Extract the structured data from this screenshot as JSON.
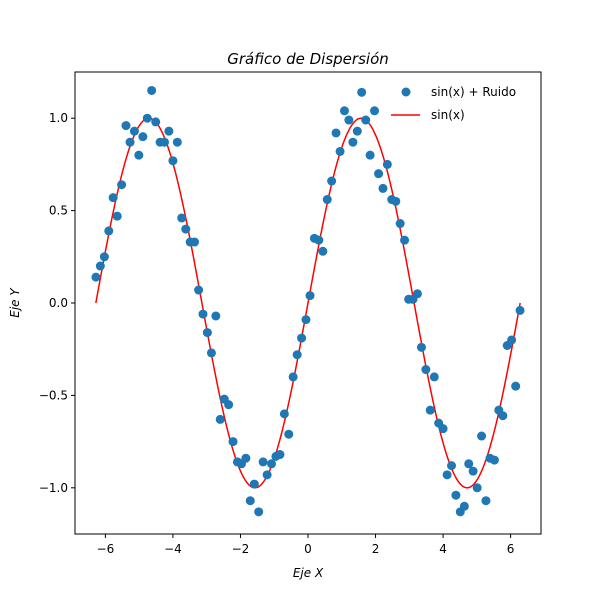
{
  "chart_data": {
    "type": "scatter",
    "title": "Gráfico de Dispersión",
    "xlabel": "Eje X",
    "ylabel": "Eje Y",
    "xlim": [
      -6.9,
      6.9
    ],
    "ylim": [
      -1.25,
      1.25
    ],
    "xticks": [
      -6,
      -4,
      -2,
      0,
      2,
      4,
      6
    ],
    "yticks": [
      -1.0,
      -0.5,
      0.0,
      0.5,
      1.0
    ],
    "xtick_labels": [
      "−6",
      "−4",
      "−2",
      "0",
      "2",
      "4",
      "6"
    ],
    "ytick_labels": [
      "−1.0",
      "−0.5",
      "0.0",
      "0.5",
      "1.0"
    ],
    "grid": false,
    "legend_position": "top-right",
    "series": [
      {
        "name": "sin(x) + Ruido",
        "kind": "scatter",
        "color": "#1f77b4",
        "x": [
          -6.28,
          -6.15,
          -6.03,
          -5.9,
          -5.77,
          -5.65,
          -5.52,
          -5.39,
          -5.27,
          -5.14,
          -5.01,
          -4.89,
          -4.76,
          -4.63,
          -4.51,
          -4.38,
          -4.25,
          -4.12,
          -4.0,
          -3.87,
          -3.74,
          -3.62,
          -3.49,
          -3.36,
          -3.24,
          -3.11,
          -2.98,
          -2.86,
          -2.73,
          -2.6,
          -2.48,
          -2.35,
          -2.22,
          -2.09,
          -1.97,
          -1.84,
          -1.71,
          -1.59,
          -1.46,
          -1.33,
          -1.21,
          -1.08,
          -0.95,
          -0.83,
          -0.7,
          -0.57,
          -0.44,
          -0.32,
          -0.19,
          -0.06,
          0.06,
          0.19,
          0.32,
          0.44,
          0.57,
          0.7,
          0.83,
          0.95,
          1.08,
          1.21,
          1.33,
          1.46,
          1.59,
          1.71,
          1.84,
          1.97,
          2.09,
          2.22,
          2.35,
          2.48,
          2.6,
          2.73,
          2.86,
          2.98,
          3.11,
          3.24,
          3.36,
          3.49,
          3.62,
          3.74,
          3.87,
          4.0,
          4.12,
          4.25,
          4.38,
          4.51,
          4.63,
          4.76,
          4.89,
          5.01,
          5.14,
          5.27,
          5.39,
          5.52,
          5.65,
          5.77,
          5.9,
          6.03,
          6.15,
          6.28
        ],
        "y": [
          0.14,
          0.2,
          0.25,
          0.39,
          0.57,
          0.47,
          0.64,
          0.96,
          0.87,
          0.93,
          0.8,
          0.9,
          1.0,
          1.15,
          0.98,
          0.87,
          0.87,
          0.93,
          0.77,
          0.87,
          0.46,
          0.4,
          0.33,
          0.33,
          0.07,
          -0.06,
          -0.16,
          -0.27,
          -0.07,
          -0.63,
          -0.52,
          -0.55,
          -0.75,
          -0.86,
          -0.87,
          -0.84,
          -1.07,
          -0.98,
          -1.13,
          -0.86,
          -0.93,
          -0.87,
          -0.83,
          -0.82,
          -0.6,
          -0.71,
          -0.4,
          -0.28,
          -0.19,
          -0.09,
          0.04,
          0.35,
          0.34,
          0.28,
          0.56,
          0.66,
          0.92,
          0.82,
          1.04,
          0.99,
          0.87,
          0.93,
          1.14,
          0.99,
          0.8,
          1.04,
          0.7,
          0.62,
          0.75,
          0.56,
          0.55,
          0.43,
          0.34,
          0.02,
          0.02,
          0.05,
          -0.24,
          -0.36,
          -0.58,
          -0.4,
          -0.65,
          -0.68,
          -0.93,
          -0.88,
          -1.04,
          -1.13,
          -1.1,
          -0.87,
          -0.91,
          -1.0,
          -0.72,
          -1.07,
          -0.84,
          -0.85,
          -0.58,
          -0.61,
          -0.23,
          -0.2,
          -0.45,
          -0.04
        ]
      },
      {
        "name": "sin(x)",
        "kind": "line",
        "color": "#ff0000",
        "function": "sin",
        "x_range": [
          -6.2832,
          6.2832
        ]
      }
    ]
  }
}
